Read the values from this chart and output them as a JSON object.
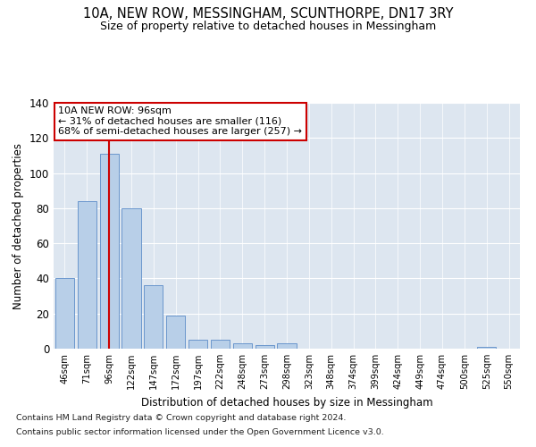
{
  "title": "10A, NEW ROW, MESSINGHAM, SCUNTHORPE, DN17 3RY",
  "subtitle": "Size of property relative to detached houses in Messingham",
  "xlabel": "Distribution of detached houses by size in Messingham",
  "ylabel": "Number of detached properties",
  "footnote1": "Contains HM Land Registry data © Crown copyright and database right 2024.",
  "footnote2": "Contains public sector information licensed under the Open Government Licence v3.0.",
  "annotation_line1": "10A NEW ROW: 96sqm",
  "annotation_line2": "← 31% of detached houses are smaller (116)",
  "annotation_line3": "68% of semi-detached houses are larger (257) →",
  "bar_labels": [
    "46sqm",
    "71sqm",
    "96sqm",
    "122sqm",
    "147sqm",
    "172sqm",
    "197sqm",
    "222sqm",
    "248sqm",
    "273sqm",
    "298sqm",
    "323sqm",
    "348sqm",
    "374sqm",
    "399sqm",
    "424sqm",
    "449sqm",
    "474sqm",
    "500sqm",
    "525sqm",
    "550sqm"
  ],
  "bar_values": [
    40,
    84,
    111,
    80,
    36,
    19,
    5,
    5,
    3,
    2,
    3,
    0,
    0,
    0,
    0,
    0,
    0,
    0,
    0,
    1,
    0
  ],
  "bar_color": "#b8cfe8",
  "bar_edge_color": "#5b8cc8",
  "marker_color": "#cc0000",
  "background_color": "#dde6f0",
  "ylim": [
    0,
    140
  ],
  "yticks": [
    0,
    20,
    40,
    60,
    80,
    100,
    120,
    140
  ]
}
